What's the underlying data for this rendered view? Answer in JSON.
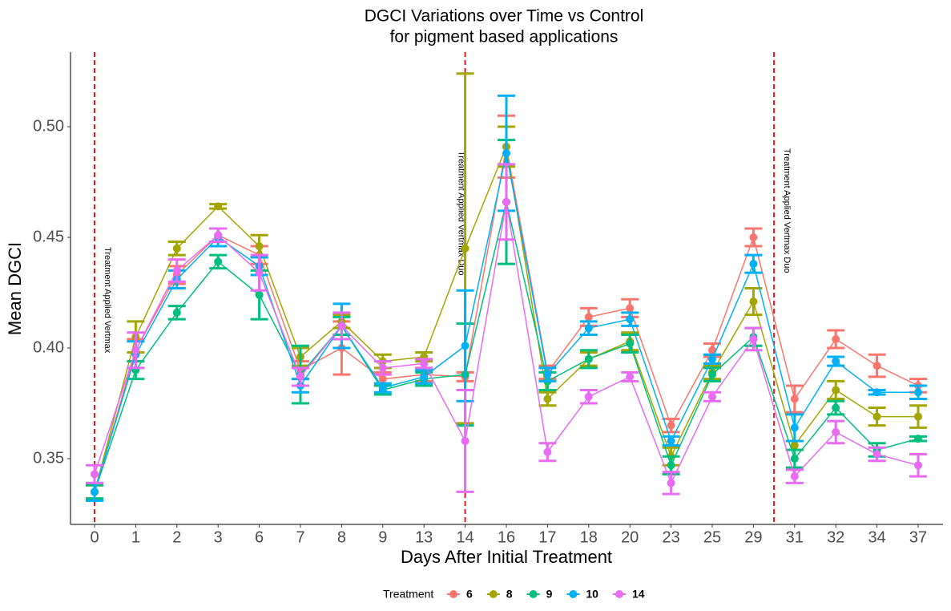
{
  "chart_data": {
    "type": "line",
    "title": [
      "DGCI Variations over Time vs Control",
      "for pigment based applications"
    ],
    "x_label": "Days After Initial Treatment",
    "y_label": "Mean DGCI",
    "legend_title": "Treatment",
    "legend_position": "bottom",
    "grid": false,
    "categories": [
      "0",
      "1",
      "2",
      "3",
      "6",
      "7",
      "8",
      "9",
      "13",
      "14",
      "16",
      "17",
      "18",
      "20",
      "23",
      "25",
      "29",
      "31",
      "32",
      "34",
      "37"
    ],
    "ylim": [
      0.3203,
      0.5337
    ],
    "yticks": [
      0.35,
      {
        "value": 0.4,
        "label": "0.40"
      },
      0.45,
      {
        "value": 0.5,
        "label": "0.50"
      }
    ],
    "vlines": [
      {
        "x": 0,
        "label": "Treatment Applied Vertmax",
        "color": "#e41a1c"
      },
      {
        "x": 14,
        "label": "Treatment Applied Vertmax Duo",
        "color": "#e41a1c"
      },
      {
        "x": 30,
        "label": "Treatment Applied Vertmax Duo",
        "color": "#e41a1c"
      }
    ],
    "series": [
      {
        "name": "6",
        "color": "#F8766D",
        "values": [
          0.335,
          0.399,
          0.433,
          0.451,
          0.442,
          0.39,
          0.4,
          0.386,
          0.388,
          0.387,
          0.491,
          0.389,
          0.414,
          0.418,
          0.365,
          0.399,
          0.45,
          0.377,
          0.404,
          0.392,
          0.383
        ],
        "errors": [
          0.003,
          0.005,
          0.004,
          0.003,
          0.004,
          0.004,
          0.012,
          0.003,
          0.003,
          0.002,
          0.014,
          0.003,
          0.004,
          0.004,
          0.003,
          0.003,
          0.004,
          0.006,
          0.004,
          0.005,
          0.003
        ]
      },
      {
        "name": "8",
        "color": "#A3A500",
        "values": [
          0.335,
          0.405,
          0.445,
          0.464,
          0.446,
          0.396,
          0.412,
          0.394,
          0.396,
          0.445,
          0.491,
          0.377,
          0.395,
          0.403,
          0.351,
          0.389,
          0.421,
          0.356,
          0.381,
          0.369,
          0.369
        ],
        "errors": [
          0.003,
          0.007,
          0.003,
          0.001,
          0.005,
          0.004,
          0.003,
          0.003,
          0.002,
          0.079,
          0.009,
          0.003,
          0.003,
          0.004,
          0.004,
          0.003,
          0.006,
          0.002,
          0.004,
          0.004,
          0.005
        ]
      },
      {
        "name": "9",
        "color": "#00BF7D",
        "values": [
          0.335,
          0.39,
          0.416,
          0.439,
          0.424,
          0.388,
          0.41,
          0.381,
          0.386,
          0.388,
          0.466,
          0.385,
          0.395,
          0.402,
          0.347,
          0.388,
          0.405,
          0.35,
          0.373,
          0.354,
          0.359
        ],
        "errors": [
          0.003,
          0.004,
          0.003,
          0.003,
          0.011,
          0.013,
          0.004,
          0.002,
          0.003,
          0.023,
          0.028,
          0.004,
          0.004,
          0.004,
          0.004,
          0.003,
          0.004,
          0.004,
          0.003,
          0.003,
          0.001
        ]
      },
      {
        "name": "10",
        "color": "#00B0F6",
        "values": [
          0.335,
          0.397,
          0.431,
          0.45,
          0.437,
          0.383,
          0.41,
          0.382,
          0.387,
          0.401,
          0.488,
          0.388,
          0.409,
          0.413,
          0.358,
          0.395,
          0.438,
          0.364,
          0.394,
          0.38,
          0.38
        ],
        "errors": [
          0.004,
          0.006,
          0.004,
          0.004,
          0.004,
          0.003,
          0.01,
          0.002,
          0.003,
          0.025,
          0.026,
          0.003,
          0.003,
          0.003,
          0.002,
          0.002,
          0.004,
          0.006,
          0.002,
          0.001,
          0.003
        ]
      },
      {
        "name": "14",
        "color": "#E76BF3",
        "values": [
          0.343,
          0.399,
          0.435,
          0.451,
          0.434,
          0.387,
          0.41,
          0.391,
          0.393,
          0.358,
          0.466,
          0.353,
          0.378,
          0.387,
          0.339,
          0.378,
          0.404,
          0.342,
          0.362,
          0.352,
          0.347
        ],
        "errors": [
          0.004,
          0.008,
          0.005,
          0.003,
          0.008,
          0.004,
          0.006,
          0.003,
          0.002,
          0.023,
          0.017,
          0.004,
          0.003,
          0.002,
          0.005,
          0.002,
          0.005,
          0.003,
          0.005,
          0.003,
          0.005
        ]
      }
    ]
  }
}
